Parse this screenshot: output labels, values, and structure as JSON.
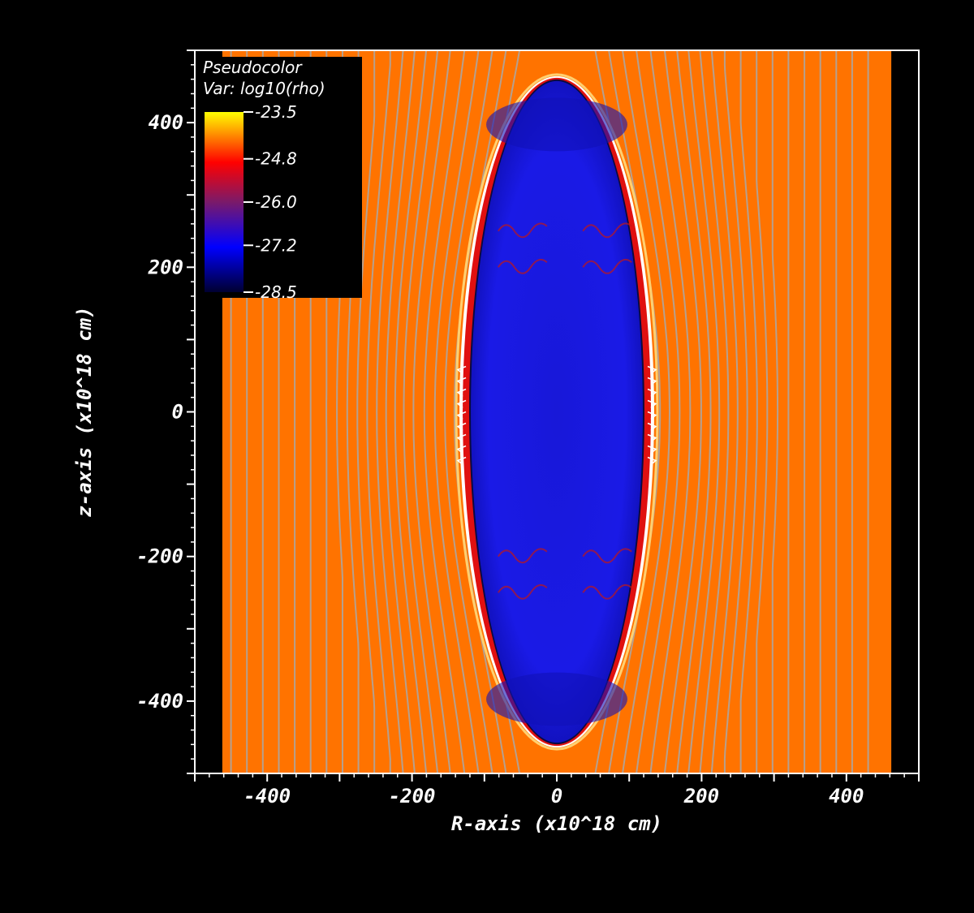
{
  "chart_data": {
    "type": "heatmap",
    "xlabel": "R-axis (x10^18 cm)",
    "ylabel": "z-axis (x10^18 cm)",
    "xlim": [
      -500,
      500
    ],
    "ylim": [
      -500,
      500
    ],
    "x_ticks": [
      "-400",
      "-200",
      "0",
      "200",
      "400"
    ],
    "y_ticks": [
      "-400",
      "-200",
      "0",
      "200",
      "400"
    ],
    "x_tick_values": [
      -400,
      -200,
      0,
      200,
      400
    ],
    "y_tick_values": [
      -400,
      -200,
      0,
      200,
      400
    ],
    "domain_extent": {
      "r": [
        -462,
        462
      ],
      "z": [
        -500,
        500
      ]
    },
    "cavity": {
      "center": [
        0,
        0
      ],
      "half_width": 130,
      "half_height": 462
    },
    "legend": {
      "title": "Pseudocolor",
      "variable": "Var: log10(rho)",
      "placement": "top-left",
      "ticks": [
        "-23.5",
        "-24.8",
        "-26.0",
        "-27.2",
        "-28.5"
      ],
      "tick_values": [
        -23.5,
        -24.8,
        -26.0,
        -27.2,
        -28.5
      ],
      "range": [
        -28.5,
        -23.5
      ]
    },
    "colors": {
      "background": "#000000",
      "ambient": "#ff7300",
      "cavity": "#1a1ae6",
      "cavity_dark": "#1010b8",
      "rim_red": "#e01010",
      "rim_white": "#ffffff",
      "field_lines": "#a8a8a8",
      "colormap": [
        "#000030",
        "#0000ff",
        "#7a1a6a",
        "#ff0000",
        "#ff8000",
        "#ffff00"
      ]
    }
  }
}
